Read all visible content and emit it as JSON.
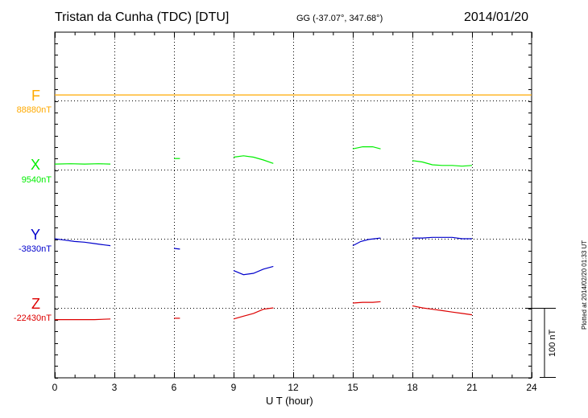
{
  "chart_data": {
    "type": "line",
    "title": "Tristan da Cunha (TDC)  [DTU]",
    "coordinates": "GG (-37.07°, 347.68°)",
    "date": "2014/01/20",
    "xlabel": "U T (hour)",
    "xlim": [
      0,
      24
    ],
    "xticks": [
      0,
      3,
      6,
      9,
      12,
      15,
      18,
      21,
      24
    ],
    "xtick_labels": [
      "0",
      "3",
      "6",
      "9",
      "12",
      "15",
      "18",
      "21",
      "24"
    ],
    "scale_label": "100 nT",
    "scale_nT": 100,
    "plotted_note": "Plotted at 2014/02/20 01:33 UT",
    "series": [
      {
        "name": "F",
        "baseline_label": "88880nT",
        "color": "#ffaa00",
        "segments": [
          [
            [
              0,
              8
            ],
            [
              3,
              8
            ],
            [
              6,
              8
            ],
            [
              9,
              8
            ],
            [
              12,
              8
            ],
            [
              15,
              8
            ],
            [
              18,
              8
            ],
            [
              21,
              8
            ],
            [
              24,
              8
            ]
          ]
        ]
      },
      {
        "name": "X",
        "baseline_label": "9540nT",
        "color": "#00ee00",
        "segments": [
          [
            [
              0,
              8
            ],
            [
              0.8,
              8.5
            ],
            [
              1.5,
              8
            ],
            [
              2.2,
              8.5
            ],
            [
              2.8,
              8
            ]
          ],
          [
            [
              6.0,
              16
            ],
            [
              6.3,
              16
            ]
          ],
          [
            [
              9.0,
              18
            ],
            [
              9.5,
              20
            ],
            [
              10.0,
              18
            ],
            [
              10.5,
              14
            ],
            [
              11.0,
              9
            ]
          ],
          [
            [
              15.0,
              30
            ],
            [
              15.5,
              33
            ],
            [
              16.0,
              33
            ],
            [
              16.4,
              30
            ]
          ],
          [
            [
              18.0,
              13
            ],
            [
              18.5,
              11
            ],
            [
              19.0,
              7
            ],
            [
              19.5,
              6
            ],
            [
              20.0,
              6
            ],
            [
              20.5,
              5
            ],
            [
              21.0,
              6
            ]
          ]
        ]
      },
      {
        "name": "Y",
        "baseline_label": "-3830nT",
        "color": "#0000cc",
        "segments": [
          [
            [
              0,
              0
            ],
            [
              0.5,
              -2
            ],
            [
              1.0,
              -4
            ],
            [
              1.5,
              -5
            ],
            [
              2.0,
              -7
            ],
            [
              2.5,
              -9
            ],
            [
              2.8,
              -10
            ]
          ],
          [
            [
              6.0,
              -14
            ],
            [
              6.3,
              -15
            ]
          ],
          [
            [
              9.0,
              -46
            ],
            [
              9.5,
              -52
            ],
            [
              10.0,
              -50
            ],
            [
              10.5,
              -44
            ],
            [
              11.0,
              -40
            ]
          ],
          [
            [
              15.0,
              -10
            ],
            [
              15.4,
              -4
            ],
            [
              15.8,
              -1
            ],
            [
              16.4,
              1
            ]
          ],
          [
            [
              18.0,
              1
            ],
            [
              18.5,
              1
            ],
            [
              19.0,
              2
            ],
            [
              19.5,
              2
            ],
            [
              20.0,
              2
            ],
            [
              20.5,
              0
            ],
            [
              21.0,
              0
            ]
          ]
        ]
      },
      {
        "name": "Z",
        "baseline_label": "-22430nT",
        "color": "#dd0000",
        "segments": [
          [
            [
              0,
              -17
            ],
            [
              1.0,
              -17
            ],
            [
              2.0,
              -17
            ],
            [
              2.8,
              -16
            ]
          ],
          [
            [
              6.0,
              -15
            ],
            [
              6.3,
              -15
            ]
          ],
          [
            [
              9.0,
              -16
            ],
            [
              9.5,
              -12
            ],
            [
              10.0,
              -8
            ],
            [
              10.5,
              -2
            ],
            [
              11.0,
              0
            ]
          ],
          [
            [
              15.0,
              7
            ],
            [
              15.5,
              8
            ],
            [
              16.0,
              8
            ],
            [
              16.4,
              9
            ]
          ],
          [
            [
              18.0,
              3
            ],
            [
              18.5,
              0
            ],
            [
              19.0,
              -2
            ],
            [
              19.5,
              -4
            ],
            [
              20.0,
              -6
            ],
            [
              20.5,
              -8
            ],
            [
              21.0,
              -10
            ]
          ]
        ]
      }
    ]
  }
}
